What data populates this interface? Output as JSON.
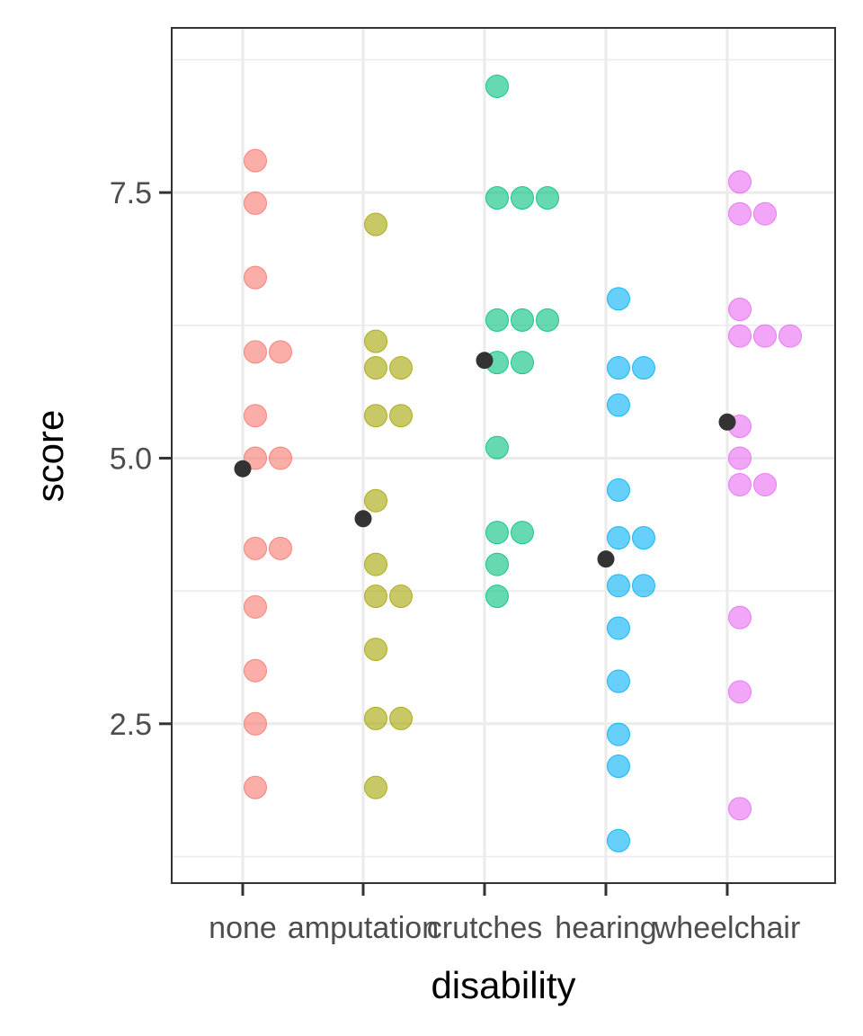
{
  "chart_data": {
    "type": "scatter",
    "title": "",
    "xlabel": "disability",
    "ylabel": "score",
    "ylim": [
      1.0,
      9.05
    ],
    "categories": [
      "none",
      "amputation",
      "crutches",
      "hearing",
      "wheelchair"
    ],
    "y_ticks": [
      2.5,
      5.0,
      7.5
    ],
    "y_tick_labels": [
      "2.5",
      "5.0",
      "7.5"
    ],
    "grid": true,
    "legend": "none",
    "point_alpha": 0.6,
    "series": [
      {
        "category": "none",
        "color": "#F8766D",
        "mean": 4.9,
        "values": [
          7.8,
          7.4,
          6.7,
          6.0,
          6.0,
          5.4,
          5.0,
          5.0,
          4.15,
          4.15,
          3.6,
          3.0,
          2.5,
          1.9
        ]
      },
      {
        "category": "amputation",
        "color": "#A3A500",
        "mean": 4.43,
        "values": [
          7.2,
          6.1,
          5.85,
          5.85,
          5.4,
          5.4,
          4.6,
          4.0,
          3.7,
          3.7,
          3.2,
          2.55,
          2.55,
          1.9
        ]
      },
      {
        "category": "crutches",
        "color": "#00BF7D",
        "mean": 5.92,
        "values": [
          8.5,
          7.45,
          7.45,
          7.45,
          6.3,
          6.3,
          6.3,
          5.9,
          5.9,
          5.1,
          4.3,
          4.3,
          4.0,
          3.7
        ]
      },
      {
        "category": "hearing",
        "color": "#00B0F6",
        "mean": 4.05,
        "values": [
          6.5,
          5.85,
          5.85,
          5.5,
          4.7,
          4.25,
          4.25,
          3.8,
          3.8,
          3.4,
          2.9,
          2.4,
          2.1,
          1.4
        ]
      },
      {
        "category": "wheelchair",
        "color": "#E76BF3",
        "mean": 5.34,
        "values": [
          7.6,
          7.3,
          7.3,
          6.4,
          6.15,
          6.15,
          6.15,
          5.3,
          5.0,
          4.75,
          4.75,
          3.5,
          2.8,
          1.7
        ]
      }
    ],
    "mean_point_color": "#333333"
  }
}
